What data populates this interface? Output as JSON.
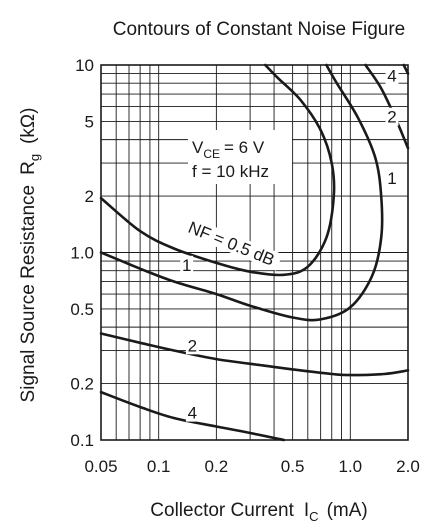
{
  "chart_data": {
    "type": "line",
    "title": "Contours of Constant Noise Figure",
    "xlabel_main": "Collector Current",
    "xlabel_symbol": "I",
    "xlabel_subscript": "C",
    "xlabel_unit": "(mA)",
    "ylabel_main": "Signal Source Resistance",
    "ylabel_symbol": "R",
    "ylabel_subscript": "g",
    "ylabel_unit": "(kΩ)",
    "x_scale": "log",
    "y_scale": "log",
    "xlim": [
      0.05,
      2.0
    ],
    "ylim": [
      0.1,
      10
    ],
    "grid": true,
    "x_ticks": [
      {
        "value": 0.05,
        "label": "0.05"
      },
      {
        "value": 0.1,
        "label": "0.1"
      },
      {
        "value": 0.2,
        "label": "0.2"
      },
      {
        "value": 0.5,
        "label": "0.5"
      },
      {
        "value": 1.0,
        "label": "1.0"
      },
      {
        "value": 2.0,
        "label": "2.0"
      }
    ],
    "y_ticks": [
      {
        "value": 0.1,
        "label": "0.1"
      },
      {
        "value": 0.2,
        "label": "0.2"
      },
      {
        "value": 0.5,
        "label": "0.5"
      },
      {
        "value": 1.0,
        "label": "1.0"
      },
      {
        "value": 2,
        "label": "2"
      },
      {
        "value": 5,
        "label": "5"
      },
      {
        "value": 10,
        "label": "10"
      }
    ],
    "conditions": {
      "vce_symbol": "V",
      "vce_subscript": "CE",
      "vce_value": "= 6 V",
      "freq": "f = 10 kHz"
    },
    "series": [
      {
        "name": "NF = 0.5 dB",
        "points": [
          [
            0.05,
            1.95
          ],
          [
            0.08,
            1.3
          ],
          [
            0.12,
            1.05
          ],
          [
            0.2,
            0.88
          ],
          [
            0.3,
            0.79
          ],
          [
            0.45,
            0.76
          ],
          [
            0.6,
            0.84
          ],
          [
            0.75,
            1.2
          ],
          [
            0.82,
            2.0
          ],
          [
            0.8,
            3.0
          ],
          [
            0.7,
            4.5
          ],
          [
            0.55,
            6.5
          ],
          [
            0.42,
            8.5
          ],
          [
            0.36,
            10
          ]
        ]
      },
      {
        "name": "1",
        "points": [
          [
            0.05,
            1.0
          ],
          [
            0.08,
            0.82
          ],
          [
            0.12,
            0.7
          ],
          [
            0.2,
            0.6
          ],
          [
            0.3,
            0.52
          ],
          [
            0.5,
            0.45
          ],
          [
            0.7,
            0.44
          ],
          [
            1.0,
            0.51
          ],
          [
            1.3,
            0.75
          ],
          [
            1.45,
            1.2
          ],
          [
            1.45,
            2.0
          ],
          [
            1.35,
            3.2
          ],
          [
            1.1,
            5.2
          ],
          [
            0.85,
            8.0
          ],
          [
            0.75,
            10
          ]
        ]
      },
      {
        "name": "2",
        "points": [
          [
            0.05,
            0.37
          ],
          [
            0.08,
            0.33
          ],
          [
            0.12,
            0.3
          ],
          [
            0.2,
            0.27
          ],
          [
            0.35,
            0.25
          ],
          [
            0.5,
            0.238
          ],
          [
            0.8,
            0.225
          ],
          [
            1.0,
            0.222
          ],
          [
            1.5,
            0.225
          ],
          [
            2.0,
            0.235
          ]
        ]
      },
      {
        "name": "2",
        "points": [
          [
            1.2,
            10
          ],
          [
            1.45,
            7.5
          ],
          [
            1.75,
            5.0
          ],
          [
            2.0,
            3.6
          ]
        ]
      },
      {
        "name": "4",
        "points": [
          [
            0.05,
            0.18
          ],
          [
            0.08,
            0.15
          ],
          [
            0.12,
            0.131
          ],
          [
            0.2,
            0.118
          ],
          [
            0.3,
            0.109
          ],
          [
            0.45,
            0.1
          ]
        ]
      },
      {
        "name": "4",
        "points": [
          [
            1.9,
            10
          ],
          [
            2.0,
            9.0
          ]
        ]
      }
    ],
    "annotations": [
      {
        "text": "NF = 0.5 dB",
        "x": 0.24,
        "y": 1.12,
        "rotation": 22
      },
      {
        "text": "1",
        "x": 0.14,
        "y": 0.86,
        "rotation": 0
      },
      {
        "text": "1",
        "x": 1.65,
        "y": 2.5,
        "rotation": 0
      },
      {
        "text": "2",
        "x": 0.15,
        "y": 0.32,
        "rotation": 0
      },
      {
        "text": "2",
        "x": 1.65,
        "y": 5.3,
        "rotation": 0
      },
      {
        "text": "4",
        "x": 0.15,
        "y": 0.14,
        "rotation": 0
      },
      {
        "text": "4",
        "x": 1.65,
        "y": 8.8,
        "rotation": 0
      }
    ]
  }
}
